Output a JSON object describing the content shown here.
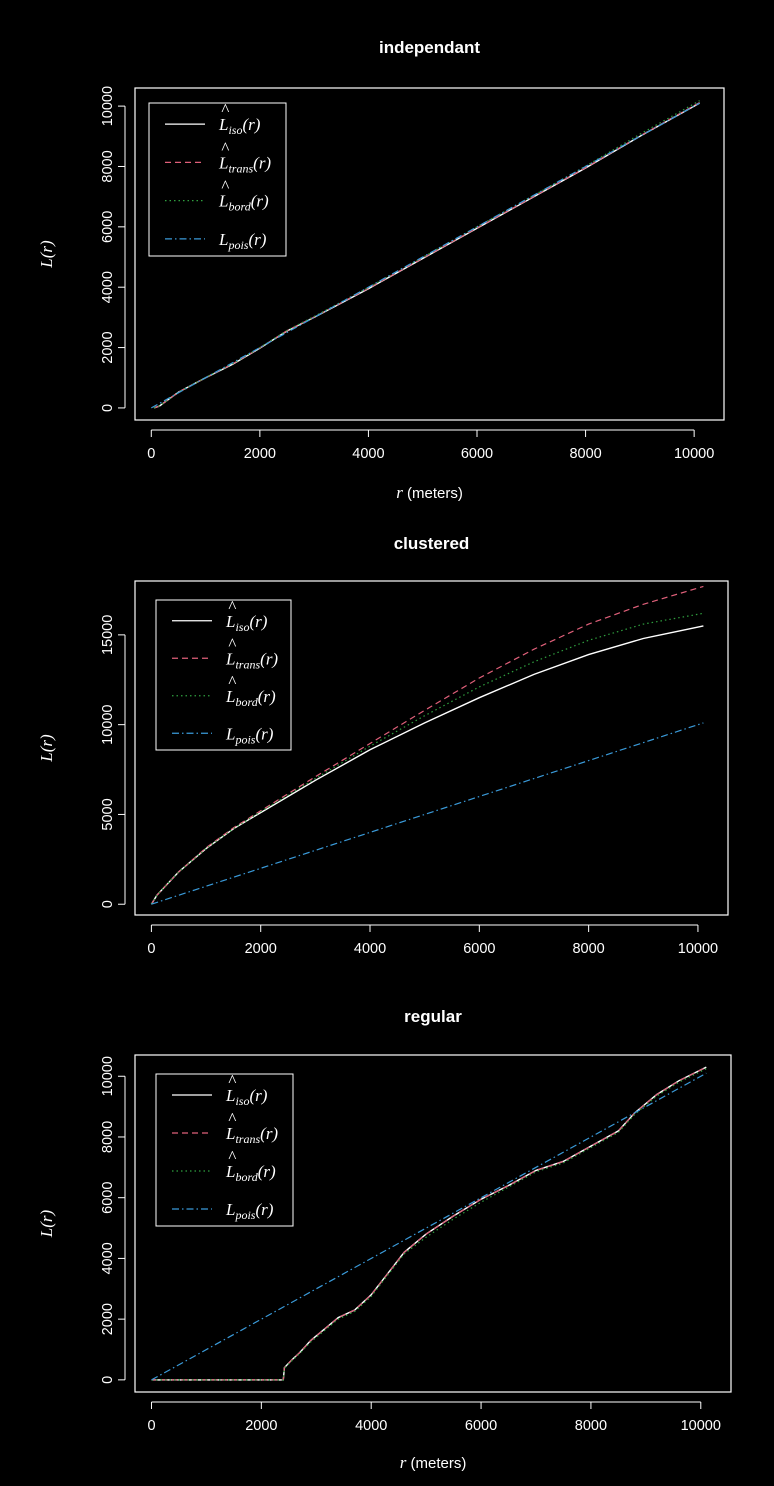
{
  "chart_data": [
    {
      "type": "line",
      "title": "independant",
      "xlabel": "(meters)",
      "xlabel_var": "r",
      "ylabel": "L(r)",
      "xlim": [
        -300,
        10550
      ],
      "ylim": [
        -400,
        10600
      ],
      "xticks": [
        0,
        2000,
        4000,
        6000,
        8000,
        10000
      ],
      "yticks": [
        0,
        2000,
        4000,
        6000,
        8000,
        10000
      ],
      "legend_position": "top-left",
      "legend": [
        {
          "hat": "^",
          "base": "L",
          "sub": "iso",
          "arg": "(r)",
          "color": "#ffffff",
          "dash": "solid"
        },
        {
          "hat": "^",
          "base": "L",
          "sub": "trans",
          "arg": "(r)",
          "color": "#e0607a",
          "dash": "dashed"
        },
        {
          "hat": "^",
          "base": "L",
          "sub": "bord",
          "arg": "(r)",
          "color": "#2f9f3f",
          "dash": "dotted"
        },
        {
          "hat": "",
          "base": "L",
          "sub": "pois",
          "arg": "(r)",
          "color": "#3a9ad9",
          "dash": "dotdash"
        }
      ],
      "series": [
        {
          "name": "L_iso(r)",
          "x": [
            50,
            150,
            500,
            1000,
            1500,
            2000,
            2500,
            3000,
            4000,
            5000,
            6000,
            7000,
            8000,
            9000,
            10100
          ],
          "y": [
            0,
            60,
            520,
            1000,
            1450,
            1980,
            2550,
            3000,
            3950,
            4950,
            5950,
            6950,
            7950,
            9000,
            10100
          ]
        },
        {
          "name": "L_trans(r)",
          "x": [
            50,
            150,
            500,
            1000,
            1500,
            2000,
            2500,
            3000,
            4000,
            5000,
            6000,
            7000,
            8000,
            9000,
            10100
          ],
          "y": [
            0,
            60,
            520,
            1000,
            1460,
            1990,
            2560,
            3010,
            3960,
            4960,
            5960,
            6960,
            7960,
            9010,
            10120
          ]
        },
        {
          "name": "L_bord(r)",
          "x": [
            50,
            150,
            500,
            1000,
            1500,
            2000,
            2500,
            3000,
            4000,
            5000,
            6000,
            7000,
            8000,
            9000,
            10100
          ],
          "y": [
            0,
            60,
            520,
            1010,
            1470,
            2000,
            2570,
            3030,
            3990,
            4990,
            6000,
            7000,
            8010,
            9070,
            10180
          ]
        },
        {
          "name": "L_pois(r)",
          "x": [
            0,
            10100
          ],
          "y": [
            0,
            10100
          ]
        }
      ]
    },
    {
      "type": "line",
      "title": "clustered",
      "xlabel": "",
      "xlabel_var": "",
      "ylabel": "L(r)",
      "xlim": [
        -300,
        10550
      ],
      "ylim": [
        -600,
        18000
      ],
      "xticks": [
        0,
        2000,
        4000,
        6000,
        8000,
        10000
      ],
      "yticks": [
        0,
        5000,
        10000,
        15000
      ],
      "legend_position": "top-left",
      "legend": [
        {
          "hat": "^",
          "base": "L",
          "sub": "iso",
          "arg": "(r)",
          "color": "#ffffff",
          "dash": "solid"
        },
        {
          "hat": "^",
          "base": "L",
          "sub": "trans",
          "arg": "(r)",
          "color": "#e0607a",
          "dash": "dashed"
        },
        {
          "hat": "^",
          "base": "L",
          "sub": "bord",
          "arg": "(r)",
          "color": "#2f9f3f",
          "dash": "dotted"
        },
        {
          "hat": "",
          "base": "L",
          "sub": "pois",
          "arg": "(r)",
          "color": "#3a9ad9",
          "dash": "dotdash"
        }
      ],
      "series": [
        {
          "name": "L_iso(r)",
          "x": [
            0,
            100,
            500,
            1000,
            1500,
            2000,
            3000,
            4000,
            5000,
            6000,
            7000,
            8000,
            9000,
            10100
          ],
          "y": [
            0,
            500,
            1800,
            3100,
            4200,
            5100,
            6900,
            8600,
            10100,
            11500,
            12800,
            13900,
            14800,
            15500
          ]
        },
        {
          "name": "L_trans(r)",
          "x": [
            0,
            100,
            500,
            1000,
            1500,
            2000,
            3000,
            4000,
            5000,
            6000,
            7000,
            8000,
            9000,
            10100
          ],
          "y": [
            0,
            500,
            1800,
            3150,
            4250,
            5200,
            7100,
            8950,
            10800,
            12600,
            14200,
            15600,
            16700,
            17700
          ]
        },
        {
          "name": "L_bord(r)",
          "x": [
            0,
            100,
            500,
            1000,
            1500,
            2000,
            3000,
            4000,
            5000,
            6000,
            7000,
            8000,
            9000,
            10100
          ],
          "y": [
            0,
            500,
            1800,
            3100,
            4200,
            5150,
            7000,
            8800,
            10500,
            12100,
            13500,
            14700,
            15600,
            16200
          ]
        },
        {
          "name": "L_pois(r)",
          "x": [
            0,
            10100
          ],
          "y": [
            0,
            10100
          ]
        }
      ]
    },
    {
      "type": "line",
      "title": "regular",
      "xlabel": "(meters)",
      "xlabel_var": "r",
      "ylabel": "L(r)",
      "xlim": [
        -300,
        10550
      ],
      "ylim": [
        -400,
        10700
      ],
      "xticks": [
        0,
        2000,
        4000,
        6000,
        8000,
        10000
      ],
      "yticks": [
        0,
        2000,
        4000,
        6000,
        8000,
        10000
      ],
      "legend_position": "top-left",
      "legend": [
        {
          "hat": "^",
          "base": "L",
          "sub": "iso",
          "arg": "(r)",
          "color": "#ffffff",
          "dash": "solid"
        },
        {
          "hat": "^",
          "base": "L",
          "sub": "trans",
          "arg": "(r)",
          "color": "#e0607a",
          "dash": "dashed"
        },
        {
          "hat": "^",
          "base": "L",
          "sub": "bord",
          "arg": "(r)",
          "color": "#2f9f3f",
          "dash": "dotted"
        },
        {
          "hat": "",
          "base": "L",
          "sub": "pois",
          "arg": "(r)",
          "color": "#3a9ad9",
          "dash": "dotdash"
        }
      ],
      "series": [
        {
          "name": "L_iso(r)",
          "x": [
            0,
            2400,
            2420,
            2550,
            2700,
            2900,
            3100,
            3400,
            3700,
            4000,
            4300,
            4600,
            5000,
            5500,
            6000,
            6500,
            7000,
            7500,
            8000,
            8500,
            8800,
            9200,
            9600,
            10100
          ],
          "y": [
            0,
            0,
            400,
            650,
            900,
            1300,
            1600,
            2050,
            2300,
            2800,
            3500,
            4200,
            4800,
            5400,
            5950,
            6400,
            6900,
            7200,
            7700,
            8200,
            8800,
            9400,
            9850,
            10300
          ]
        },
        {
          "name": "L_trans(r)",
          "x": [
            0,
            2400,
            2420,
            2550,
            2700,
            2900,
            3100,
            3400,
            3700,
            4000,
            4300,
            4600,
            5000,
            5500,
            6000,
            6500,
            7000,
            7500,
            8000,
            8500,
            8800,
            9200,
            9600,
            10100
          ],
          "y": [
            0,
            0,
            400,
            650,
            900,
            1300,
            1600,
            2050,
            2300,
            2800,
            3500,
            4200,
            4800,
            5400,
            5950,
            6400,
            6900,
            7200,
            7700,
            8200,
            8800,
            9400,
            9850,
            10300
          ]
        },
        {
          "name": "L_bord(r)",
          "x": [
            0,
            2400,
            2420,
            2550,
            2700,
            2900,
            3100,
            3400,
            3700,
            4000,
            4300,
            4600,
            5000,
            5500,
            6000,
            6500,
            7000,
            7500,
            8000,
            8500,
            8800,
            9200,
            9600,
            10100
          ],
          "y": [
            0,
            0,
            380,
            620,
            870,
            1250,
            1550,
            2000,
            2250,
            2750,
            3450,
            4150,
            4700,
            5300,
            5850,
            6350,
            6850,
            7150,
            7650,
            8150,
            8750,
            9350,
            9800,
            10250
          ]
        },
        {
          "name": "L_pois(r)",
          "x": [
            0,
            10100
          ],
          "y": [
            0,
            10100
          ]
        }
      ]
    }
  ]
}
